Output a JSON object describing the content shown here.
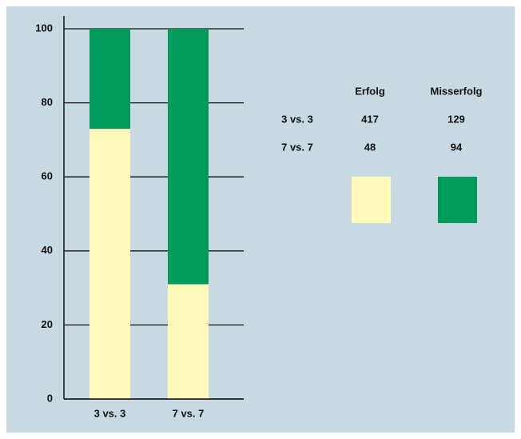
{
  "chart_data": {
    "type": "stacked_bar",
    "categories": [
      "3 vs. 3",
      "7 vs. 7"
    ],
    "series": [
      {
        "name": "Erfolg",
        "color": "#fff9bb",
        "values": [
          73,
          31
        ]
      },
      {
        "name": "Misserfolg",
        "color": "#009a5b",
        "values": [
          27,
          69
        ]
      }
    ],
    "ylim": [
      0,
      100
    ],
    "yticks": [
      0,
      20,
      40,
      60,
      80,
      100
    ],
    "grid": true,
    "table": {
      "rows": [
        {
          "label": "3 vs. 3",
          "values": [
            417,
            129
          ]
        },
        {
          "label": "7 vs. 7",
          "values": [
            48,
            94
          ]
        }
      ]
    }
  }
}
